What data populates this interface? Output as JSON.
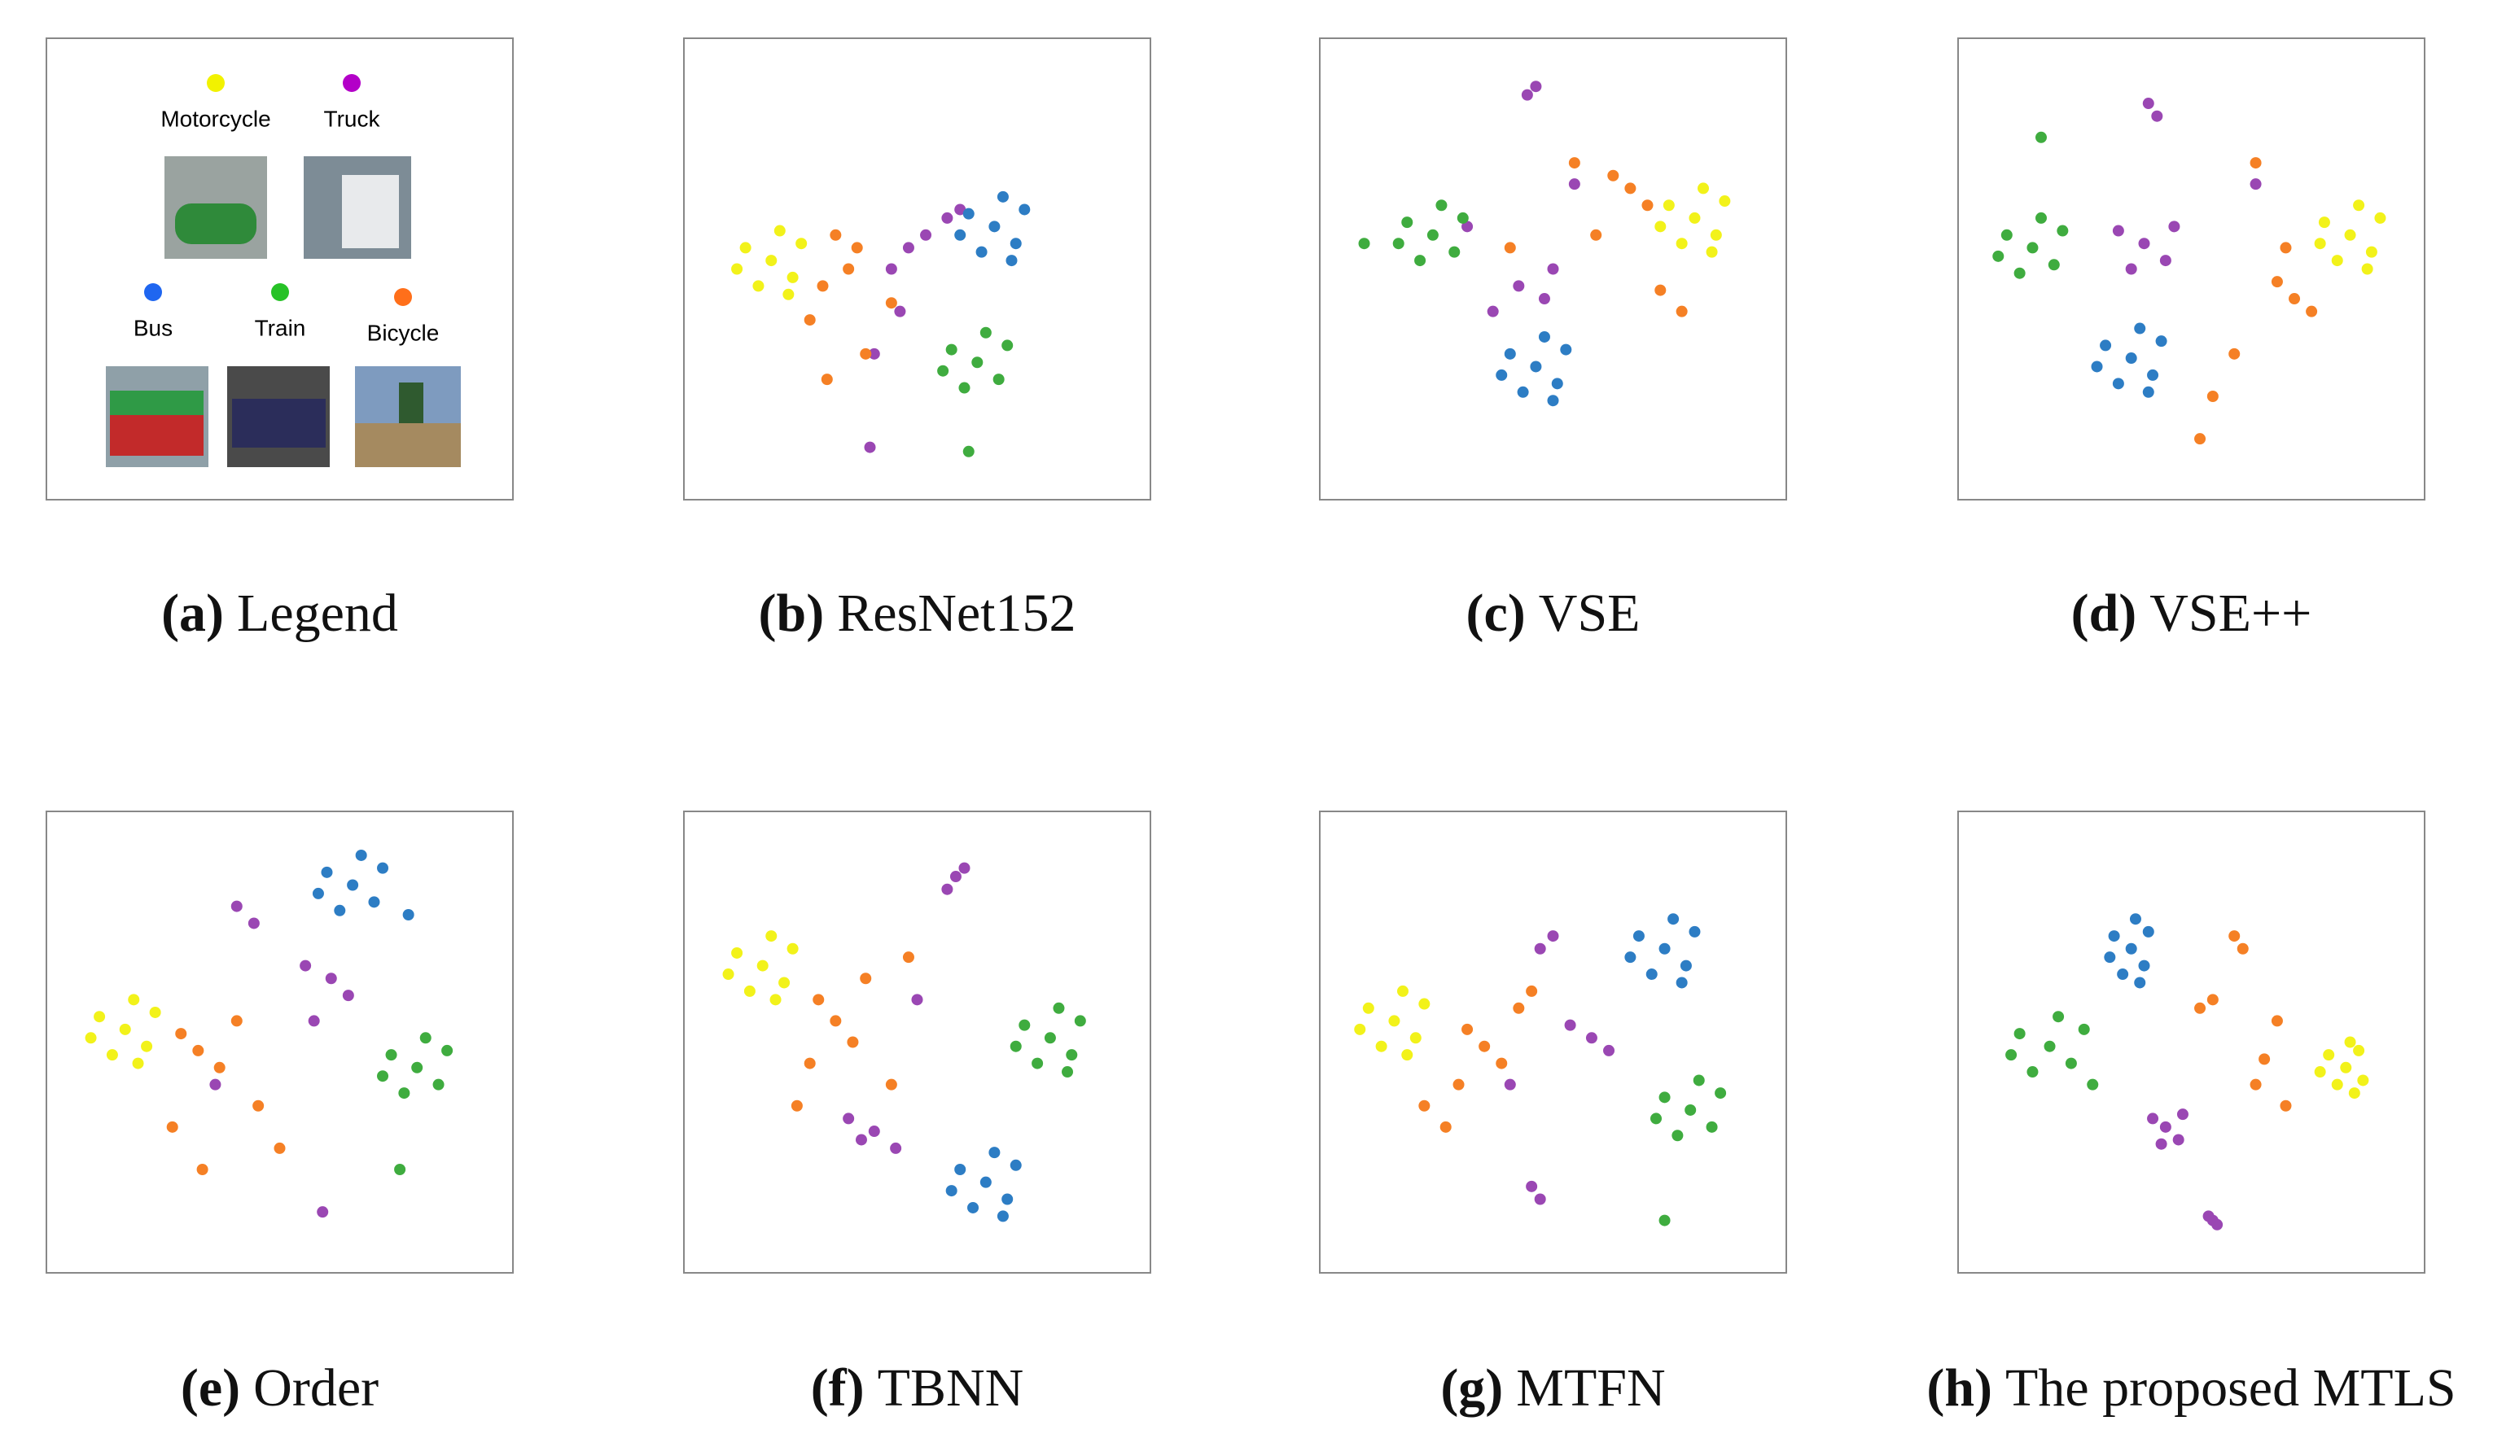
{
  "legend": {
    "label": "(a)",
    "caption": "Legend",
    "items": [
      {
        "name": "Motorcycle",
        "color": "#f2f200"
      },
      {
        "name": "Truck",
        "color": "#b300c8"
      },
      {
        "name": "Bus",
        "color": "#1f66f0"
      },
      {
        "name": "Train",
        "color": "#27c227"
      },
      {
        "name": "Bicycle",
        "color": "#ff6f1a"
      }
    ]
  },
  "chart_data": [
    {
      "type": "scatter",
      "label": "(b)",
      "caption": "ResNet152",
      "xlim": [
        0,
        100
      ],
      "ylim": [
        0,
        100
      ],
      "series": [
        {
          "color": "#f2f21a",
          "x": [
            16,
            10,
            21,
            13,
            23,
            8,
            18,
            20
          ],
          "y": [
            52,
            55,
            48,
            46,
            56,
            50,
            59,
            44
          ]
        },
        {
          "color": "#9a47b3",
          "x": [
            52,
            57,
            48,
            60,
            44,
            40,
            39,
            46
          ],
          "y": [
            58,
            62,
            55,
            64,
            50,
            30,
            8,
            40
          ]
        },
        {
          "color": "#2d7dc4",
          "x": [
            68,
            62,
            73,
            65,
            75,
            60,
            70,
            72
          ],
          "y": [
            60,
            63,
            56,
            54,
            64,
            58,
            67,
            52
          ]
        },
        {
          "color": "#3fac3f",
          "x": [
            64,
            58,
            69,
            61,
            71,
            56,
            66,
            62
          ],
          "y": [
            28,
            31,
            24,
            22,
            32,
            26,
            35,
            7
          ]
        },
        {
          "color": "#f58025",
          "x": [
            28,
            34,
            25,
            38,
            31,
            44,
            29,
            36
          ],
          "y": [
            46,
            50,
            38,
            30,
            58,
            42,
            24,
            55
          ]
        }
      ]
    },
    {
      "type": "scatter",
      "label": "(c)",
      "caption": "VSE",
      "xlim": [
        0,
        100
      ],
      "ylim": [
        0,
        100
      ],
      "series": [
        {
          "color": "#f2f21a",
          "x": [
            83,
            77,
            88,
            80,
            90,
            75,
            85,
            87
          ],
          "y": [
            62,
            65,
            58,
            56,
            66,
            60,
            69,
            54
          ]
        },
        {
          "color": "#9a47b3",
          "x": [
            46,
            44,
            48,
            42,
            36,
            50,
            55,
            30
          ],
          "y": [
            93,
            91,
            43,
            46,
            40,
            50,
            70,
            60
          ]
        },
        {
          "color": "#2d7dc4",
          "x": [
            46,
            40,
            51,
            43,
            53,
            38,
            48,
            50
          ],
          "y": [
            27,
            30,
            23,
            21,
            31,
            25,
            34,
            19
          ]
        },
        {
          "color": "#3fac3f",
          "x": [
            22,
            16,
            27,
            19,
            29,
            14,
            24,
            6
          ],
          "y": [
            58,
            61,
            54,
            52,
            62,
            56,
            65,
            56
          ]
        },
        {
          "color": "#f58025",
          "x": [
            68,
            64,
            72,
            60,
            55,
            75,
            80,
            40
          ],
          "y": [
            69,
            72,
            65,
            58,
            75,
            45,
            40,
            55
          ]
        }
      ]
    },
    {
      "type": "scatter",
      "label": "(d)",
      "caption": "VSE++",
      "xlim": [
        0,
        100
      ],
      "ylim": [
        0,
        100
      ],
      "series": [
        {
          "color": "#f2f21a",
          "x": [
            87,
            81,
            92,
            84,
            94,
            80,
            89,
            91
          ],
          "y": [
            58,
            61,
            54,
            52,
            62,
            56,
            65,
            50
          ]
        },
        {
          "color": "#9a47b3",
          "x": [
            39,
            33,
            44,
            36,
            46,
            40,
            42,
            65
          ],
          "y": [
            56,
            59,
            52,
            50,
            60,
            89,
            86,
            70
          ]
        },
        {
          "color": "#2d7dc4",
          "x": [
            36,
            30,
            41,
            33,
            43,
            28,
            38,
            40
          ],
          "y": [
            29,
            32,
            25,
            23,
            33,
            27,
            36,
            21
          ]
        },
        {
          "color": "#3fac3f",
          "x": [
            13,
            7,
            18,
            10,
            20,
            5,
            15,
            15
          ],
          "y": [
            55,
            58,
            51,
            49,
            59,
            53,
            62,
            81
          ]
        },
        {
          "color": "#f58025",
          "x": [
            74,
            70,
            78,
            65,
            60,
            55,
            72,
            52
          ],
          "y": [
            43,
            47,
            40,
            75,
            30,
            20,
            55,
            10
          ]
        }
      ]
    },
    {
      "type": "scatter",
      "label": "(e)",
      "caption": "Order",
      "xlim": [
        0,
        100
      ],
      "ylim": [
        0,
        100
      ],
      "series": [
        {
          "color": "#f2f21a",
          "x": [
            14,
            8,
            19,
            11,
            21,
            6,
            16,
            17
          ],
          "y": [
            53,
            56,
            49,
            47,
            57,
            51,
            60,
            45
          ]
        },
        {
          "color": "#9a47b3",
          "x": [
            62,
            56,
            66,
            40,
            44,
            60,
            58,
            35
          ],
          "y": [
            65,
            68,
            61,
            82,
            78,
            10,
            55,
            40
          ]
        },
        {
          "color": "#2d7dc4",
          "x": [
            67,
            61,
            72,
            64,
            74,
            59,
            69,
            80
          ],
          "y": [
            87,
            90,
            83,
            81,
            91,
            85,
            94,
            80
          ]
        },
        {
          "color": "#3fac3f",
          "x": [
            82,
            76,
            87,
            79,
            89,
            74,
            84,
            78
          ],
          "y": [
            44,
            47,
            40,
            38,
            48,
            42,
            51,
            20
          ]
        },
        {
          "color": "#f58025",
          "x": [
            31,
            27,
            36,
            25,
            45,
            50,
            40,
            32
          ],
          "y": [
            48,
            52,
            44,
            30,
            35,
            25,
            55,
            20
          ]
        }
      ]
    },
    {
      "type": "scatter",
      "label": "(f)",
      "caption": "TBNN",
      "xlim": [
        0,
        100
      ],
      "ylim": [
        0,
        100
      ],
      "series": [
        {
          "color": "#f2f21a",
          "x": [
            14,
            8,
            19,
            11,
            21,
            6,
            16,
            17
          ],
          "y": [
            68,
            71,
            64,
            62,
            72,
            66,
            75,
            60
          ]
        },
        {
          "color": "#9a47b3",
          "x": [
            40,
            34,
            45,
            37,
            59,
            57,
            61,
            50
          ],
          "y": [
            29,
            32,
            25,
            27,
            89,
            86,
            91,
            60
          ]
        },
        {
          "color": "#2d7dc4",
          "x": [
            66,
            60,
            71,
            63,
            73,
            58,
            68,
            70
          ],
          "y": [
            17,
            20,
            13,
            11,
            21,
            15,
            24,
            9
          ]
        },
        {
          "color": "#3fac3f",
          "x": [
            81,
            75,
            86,
            78,
            88,
            73,
            83,
            85
          ],
          "y": [
            51,
            54,
            47,
            45,
            55,
            49,
            58,
            43
          ]
        },
        {
          "color": "#f58025",
          "x": [
            31,
            27,
            35,
            25,
            38,
            44,
            22,
            48
          ],
          "y": [
            55,
            60,
            50,
            45,
            65,
            40,
            35,
            70
          ]
        }
      ]
    },
    {
      "type": "scatter",
      "label": "(g)",
      "caption": "MTFN",
      "xlim": [
        0,
        100
      ],
      "ylim": [
        0,
        100
      ],
      "series": [
        {
          "color": "#f2f21a",
          "x": [
            13,
            7,
            18,
            10,
            20,
            5,
            15,
            16
          ],
          "y": [
            55,
            58,
            51,
            49,
            59,
            53,
            62,
            47
          ]
        },
        {
          "color": "#9a47b3",
          "x": [
            59,
            54,
            63,
            47,
            45,
            47,
            50,
            40
          ],
          "y": [
            51,
            54,
            48,
            13,
            16,
            72,
            75,
            40
          ]
        },
        {
          "color": "#2d7dc4",
          "x": [
            76,
            70,
            81,
            73,
            83,
            68,
            78,
            80
          ],
          "y": [
            72,
            75,
            68,
            66,
            76,
            70,
            79,
            64
          ]
        },
        {
          "color": "#3fac3f",
          "x": [
            82,
            76,
            87,
            79,
            89,
            74,
            84,
            76
          ],
          "y": [
            34,
            37,
            30,
            28,
            38,
            32,
            41,
            8
          ]
        },
        {
          "color": "#f58025",
          "x": [
            34,
            30,
            38,
            28,
            42,
            25,
            45,
            20
          ],
          "y": [
            49,
            53,
            45,
            40,
            58,
            30,
            62,
            35
          ]
        }
      ]
    },
    {
      "type": "scatter",
      "label": "(h)",
      "caption": "The proposed MTLS",
      "xlim": [
        0,
        100
      ],
      "ylim": [
        0,
        100
      ],
      "series": [
        {
          "color": "#f2f21a",
          "x": [
            86,
            82,
            90,
            84,
            89,
            80,
            87,
            88
          ],
          "y": [
            44,
            47,
            41,
            40,
            48,
            43,
            50,
            38
          ]
        },
        {
          "color": "#9a47b3",
          "x": [
            44,
            41,
            47,
            43,
            48,
            55,
            54,
            56
          ],
          "y": [
            30,
            32,
            27,
            26,
            33,
            8,
            9,
            7
          ]
        },
        {
          "color": "#2d7dc4",
          "x": [
            36,
            32,
            39,
            34,
            40,
            31,
            37,
            38
          ],
          "y": [
            72,
            75,
            68,
            66,
            76,
            70,
            79,
            64
          ]
        },
        {
          "color": "#3fac3f",
          "x": [
            17,
            10,
            22,
            13,
            25,
            8,
            19,
            27
          ],
          "y": [
            49,
            52,
            45,
            43,
            53,
            47,
            56,
            40
          ]
        },
        {
          "color": "#f58025",
          "x": [
            67,
            60,
            62,
            70,
            52,
            72,
            65,
            55
          ],
          "y": [
            46,
            75,
            72,
            55,
            58,
            35,
            40,
            60
          ]
        }
      ]
    }
  ]
}
